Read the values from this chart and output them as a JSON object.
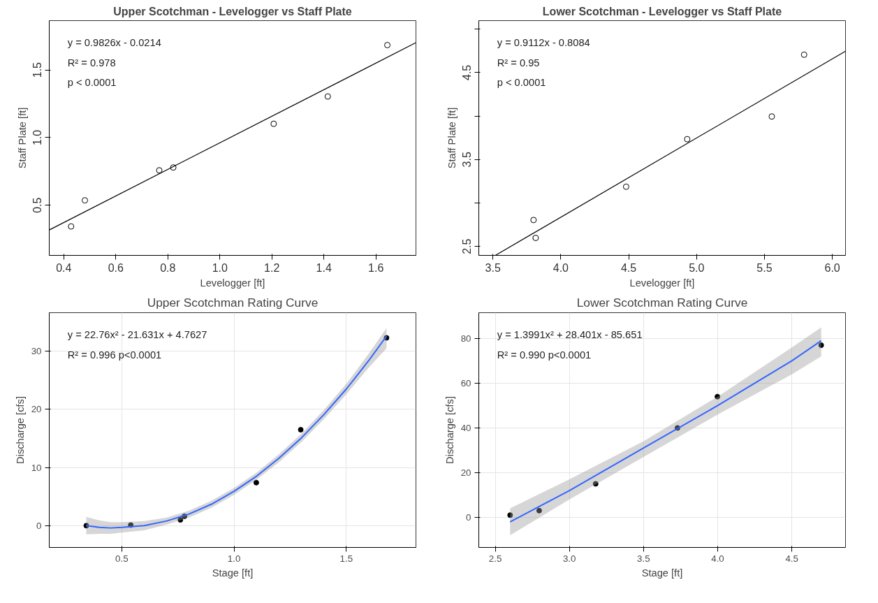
{
  "chart_data": [
    {
      "type": "scatter",
      "title": "Upper Scotchman - Levelogger vs Staff Plate",
      "xlabel": "Levelogger [ft]",
      "ylabel": "Staff Plate [ft]",
      "annotations": [
        "y = 0.9826x - 0.0214",
        "R² = 0.978",
        "p < 0.0001"
      ],
      "xlim": [
        0.344,
        1.754
      ],
      "ylim": [
        0.129,
        1.865
      ],
      "xticks": [
        0.4,
        0.6,
        0.8,
        {
          "value": 1.0,
          "label": "1.0"
        },
        1.2,
        1.4,
        1.6
      ],
      "yticks": [
        0.5,
        {
          "value": 1.0,
          "label": "1.0"
        },
        1.5
      ],
      "grid": false,
      "series": [
        {
          "marker": "circle",
          "color": "#000000",
          "x": [
            0.428,
            0.481,
            0.767,
            0.821,
            1.207,
            1.415,
            1.644
          ],
          "values": [
            0.343,
            0.536,
            0.758,
            0.779,
            1.102,
            1.304,
            1.684
          ]
        },
        {
          "type": "line",
          "marker": "none",
          "color": "#000000",
          "x": [
            0.344,
            1.754
          ],
          "values": [
            0.317,
            1.702
          ]
        }
      ]
    },
    {
      "type": "scatter",
      "title": "Lower Scotchman - Levelogger vs Staff Plate",
      "xlabel": "Levelogger [ft]",
      "ylabel": "Staff Plate [ft]",
      "annotations": [
        "y = 0.9112x - 0.8084",
        "R² = 0.95",
        "p < 0.0001"
      ],
      "xlim": [
        3.396,
        6.097
      ],
      "ylim": [
        2.397,
        5.098
      ],
      "xticks": [
        3.5,
        {
          "value": 4.0,
          "label": "4.0"
        },
        4.5,
        {
          "value": 5.0,
          "label": "5.0"
        },
        5.5,
        {
          "value": 6.0,
          "label": "6.0"
        }
      ],
      "yticks": [
        2.5,
        {
          "value": 3.0,
          "label": null
        },
        3.5,
        {
          "value": 4.0,
          "label": null
        },
        4.5,
        {
          "value": 5.0,
          "label": null
        }
      ],
      "grid": false,
      "series": [
        {
          "marker": "circle",
          "color": "#000000",
          "x": [
            3.799,
            3.815,
            4.481,
            4.931,
            5.554,
            5.792
          ],
          "values": [
            2.804,
            2.598,
            3.187,
            3.734,
            3.995,
            4.706
          ]
        },
        {
          "type": "line",
          "marker": "none",
          "color": "#000000",
          "x": [
            3.518,
            6.097
          ],
          "values": [
            2.397,
            4.747
          ]
        }
      ]
    },
    {
      "type": "scatter",
      "title": "Upper Scotchman Rating Curve",
      "xlabel": "Stage [ft]",
      "ylabel": "Discharge [cfs]",
      "annotations": [
        "y = 22.76x² - 21.631x + 4.7627",
        "R² = 0.996  p<0.0001"
      ],
      "xlim": [
        0.177,
        1.81
      ],
      "ylim": [
        -3.75,
        36.63
      ],
      "xticks": [
        0.5,
        {
          "value": 1.0,
          "label": "1.0"
        },
        1.5
      ],
      "yticks": [
        0,
        10,
        20,
        30
      ],
      "grid": true,
      "series": [
        {
          "marker": "circle",
          "color": "#000000",
          "x": [
            0.342,
            0.54,
            0.761,
            0.779,
            1.099,
            1.297,
            1.679
          ],
          "values": [
            0,
            0.1,
            1.0,
            1.6,
            7.4,
            16.5,
            32.3
          ]
        },
        {
          "type": "line",
          "marker": "none",
          "color": "#3366ff",
          "x": [
            0.342,
            0.4,
            0.45,
            0.5,
            0.6,
            0.7,
            0.8,
            0.9,
            1.0,
            1.1,
            1.2,
            1.3,
            1.4,
            1.5,
            1.6,
            1.679
          ],
          "values": [
            0.0,
            -0.3,
            -0.4,
            -0.3,
            0.0,
            0.8,
            2.0,
            3.7,
            5.9,
            8.5,
            11.6,
            15.1,
            19.1,
            23.5,
            28.4,
            32.6
          ],
          "lower": [
            -1.5,
            -1.4,
            -1.4,
            -1.2,
            -0.8,
            0.2,
            1.4,
            3.1,
            5.3,
            7.9,
            10.9,
            14.4,
            18.3,
            22.6,
            27.2,
            30.5
          ],
          "upper": [
            1.5,
            0.9,
            0.6,
            0.6,
            0.8,
            1.4,
            2.6,
            4.3,
            6.5,
            9.1,
            12.3,
            15.8,
            19.9,
            24.4,
            29.6,
            34.0
          ]
        }
      ]
    },
    {
      "type": "scatter",
      "title": "Lower Scotchman Rating Curve",
      "xlabel": "Stage [ft]",
      "ylabel": "Discharge [cfs]",
      "annotations": [
        "y = 1.3991x² + 28.401x - 85.651",
        "R² = 0.990  p<0.0001"
      ],
      "xlim": [
        2.389,
        4.862
      ],
      "ylim": [
        -13.47,
        91.55
      ],
      "xticks": [
        2.5,
        {
          "value": 3.0,
          "label": "3.0"
        },
        3.5,
        {
          "value": 4.0,
          "label": "4.0"
        },
        4.5
      ],
      "yticks": [
        0,
        20,
        40,
        60,
        80
      ],
      "grid": true,
      "series": [
        {
          "marker": "circle",
          "color": "#000000",
          "x": [
            2.6,
            2.796,
            3.177,
            3.729,
            3.998,
            4.698
          ],
          "values": [
            1,
            3,
            15,
            40,
            54,
            77
          ]
        },
        {
          "type": "line",
          "marker": "none",
          "color": "#3366ff",
          "x": [
            2.6,
            3.0,
            3.5,
            4.0,
            4.5,
            4.698
          ],
          "values": [
            -2,
            12,
            31,
            50,
            70,
            79
          ],
          "lower": [
            -8,
            8,
            27,
            46,
            64,
            72
          ],
          "upper": [
            4,
            17,
            34,
            54,
            76,
            85
          ]
        }
      ]
    }
  ]
}
